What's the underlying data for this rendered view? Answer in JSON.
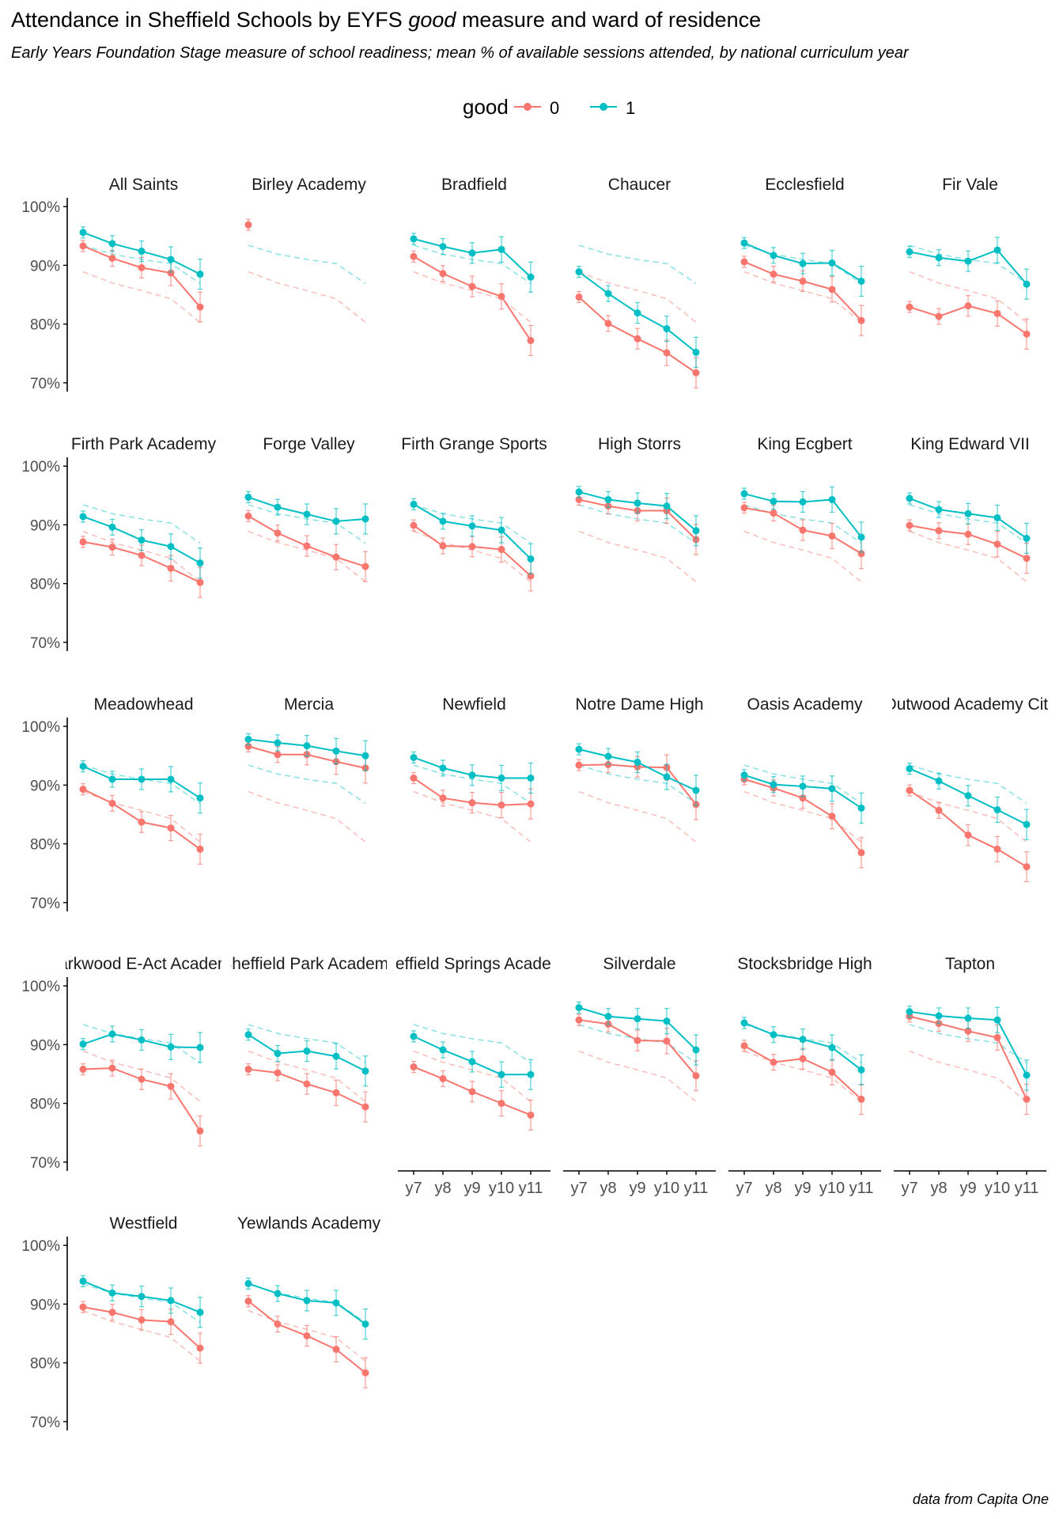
{
  "title_pre": "Attendance in Sheffield Schools by EYFS ",
  "title_em": "good",
  "title_post": " measure and ward of residence",
  "subtitle": "Early Years Foundation Stage measure of school readiness; mean % of available sessions attended, by national curriculum year",
  "caption": "data from Capita One",
  "colors": {
    "good0": "#F8766D",
    "good1": "#00BFC4",
    "axis": "#000000",
    "text": "#4D4D4D"
  },
  "chart_data": {
    "type": "line",
    "facet": "school",
    "legend": {
      "title": "good",
      "position": "top",
      "entries": [
        "0",
        "1"
      ]
    },
    "x": [
      "y7",
      "y8",
      "y9",
      "y10",
      "y11"
    ],
    "ylim": [
      0.7,
      1.0
    ],
    "y_ticks": [
      0.7,
      0.8,
      0.9,
      1.0
    ],
    "y_tick_labels": [
      "70%",
      "80%",
      "90%",
      "100%"
    ],
    "reference_dashed": {
      "good0": [
        0.889,
        0.87,
        0.857,
        0.843,
        0.803
      ],
      "good1": [
        0.934,
        0.919,
        0.91,
        0.903,
        0.869
      ]
    },
    "facets": [
      {
        "name": "All Saints",
        "good0": [
          0.933,
          0.912,
          0.896,
          0.887,
          0.829
        ],
        "good1": [
          0.956,
          0.937,
          0.924,
          0.91,
          0.885
        ]
      },
      {
        "name": "Birley Academy",
        "good0": [
          0.969,
          null,
          null,
          null,
          null
        ],
        "good1": [
          null,
          null,
          null,
          null,
          null
        ]
      },
      {
        "name": "Bradfield",
        "good0": [
          0.915,
          0.886,
          0.864,
          0.847,
          0.772
        ],
        "good1": [
          0.945,
          0.932,
          0.921,
          0.927,
          0.88
        ]
      },
      {
        "name": "Chaucer",
        "good0": [
          0.846,
          0.801,
          0.775,
          0.751,
          0.717
        ],
        "good1": [
          0.889,
          0.852,
          0.819,
          0.792,
          0.752
        ]
      },
      {
        "name": "Ecclesfield",
        "good0": [
          0.906,
          0.885,
          0.873,
          0.859,
          0.806
        ],
        "good1": [
          0.938,
          0.917,
          0.903,
          0.904,
          0.873
        ]
      },
      {
        "name": "Fir Vale",
        "good0": [
          0.829,
          0.813,
          0.831,
          0.818,
          0.783
        ],
        "good1": [
          0.923,
          0.913,
          0.907,
          0.926,
          0.868
        ]
      },
      {
        "name": "Firth Park Academy",
        "good0": [
          0.871,
          0.862,
          0.848,
          0.826,
          0.802
        ],
        "good1": [
          0.914,
          0.896,
          0.874,
          0.863,
          0.835
        ]
      },
      {
        "name": "Forge Valley",
        "good0": [
          0.915,
          0.886,
          0.864,
          0.845,
          0.829
        ],
        "good1": [
          0.947,
          0.93,
          0.918,
          0.906,
          0.91
        ]
      },
      {
        "name": "Firth Grange Sports",
        "good0": [
          0.899,
          0.864,
          0.863,
          0.858,
          0.813
        ],
        "good1": [
          0.935,
          0.906,
          0.898,
          0.891,
          0.842
        ]
      },
      {
        "name": "High Storrs",
        "good0": [
          0.943,
          0.932,
          0.924,
          0.924,
          0.875
        ],
        "good1": [
          0.956,
          0.943,
          0.937,
          0.932,
          0.89
        ]
      },
      {
        "name": "King Ecgbert",
        "good0": [
          0.929,
          0.92,
          0.891,
          0.881,
          0.851
        ],
        "good1": [
          0.953,
          0.94,
          0.939,
          0.943,
          0.879
        ]
      },
      {
        "name": "King Edward VII",
        "good0": [
          0.899,
          0.89,
          0.884,
          0.867,
          0.843
        ],
        "good1": [
          0.945,
          0.926,
          0.919,
          0.912,
          0.877
        ]
      },
      {
        "name": "Meadowhead",
        "good0": [
          0.893,
          0.869,
          0.837,
          0.827,
          0.791
        ],
        "good1": [
          0.932,
          0.91,
          0.91,
          0.91,
          0.878
        ]
      },
      {
        "name": "Mercia",
        "good0": [
          0.966,
          0.952,
          0.952,
          0.94,
          0.929
        ],
        "good1": [
          0.978,
          0.972,
          0.967,
          0.958,
          0.95
        ]
      },
      {
        "name": "Newfield",
        "good0": [
          0.912,
          0.878,
          0.87,
          0.866,
          0.868
        ],
        "good1": [
          0.947,
          0.929,
          0.917,
          0.912,
          0.912
        ]
      },
      {
        "name": "Notre Dame High",
        "good0": [
          0.934,
          0.935,
          0.931,
          0.93,
          0.867
        ],
        "good1": [
          0.961,
          0.949,
          0.939,
          0.914,
          0.891
        ]
      },
      {
        "name": "Oasis Academy",
        "good0": [
          0.91,
          0.895,
          0.878,
          0.847,
          0.785
        ],
        "good1": [
          0.917,
          0.901,
          0.898,
          0.894,
          0.861
        ]
      },
      {
        "name": "Outwood Academy City",
        "good0": [
          0.891,
          0.857,
          0.815,
          0.791,
          0.761
        ],
        "good1": [
          0.928,
          0.907,
          0.882,
          0.858,
          0.833
        ]
      },
      {
        "name": "Parkwood E-Act Academy",
        "good0": [
          0.858,
          0.86,
          0.841,
          0.829,
          0.753
        ],
        "good1": [
          0.901,
          0.918,
          0.908,
          0.896,
          0.895
        ]
      },
      {
        "name": "Sheffield Park Academy",
        "good0": [
          0.858,
          0.852,
          0.833,
          0.818,
          0.794
        ],
        "good1": [
          0.917,
          0.885,
          0.889,
          0.88,
          0.855
        ]
      },
      {
        "name": "Sheffield Springs Academy",
        "good0": [
          0.862,
          0.842,
          0.82,
          0.8,
          0.78
        ],
        "good1": [
          0.914,
          0.891,
          0.871,
          0.849,
          0.849
        ]
      },
      {
        "name": "Silverdale",
        "good0": [
          0.942,
          0.935,
          0.907,
          0.906,
          0.847
        ],
        "good1": [
          0.963,
          0.948,
          0.944,
          0.94,
          0.891
        ]
      },
      {
        "name": "Stocksbridge High",
        "good0": [
          0.898,
          0.87,
          0.876,
          0.853,
          0.807
        ],
        "good1": [
          0.937,
          0.917,
          0.909,
          0.895,
          0.857
        ]
      },
      {
        "name": "Tapton",
        "good0": [
          0.948,
          0.936,
          0.923,
          0.912,
          0.807
        ],
        "good1": [
          0.956,
          0.949,
          0.945,
          0.942,
          0.848
        ]
      },
      {
        "name": "Westfield",
        "good0": [
          0.895,
          0.886,
          0.873,
          0.87,
          0.825
        ],
        "good1": [
          0.939,
          0.919,
          0.913,
          0.906,
          0.886
        ]
      },
      {
        "name": "Yewlands Academy",
        "good0": [
          0.905,
          0.866,
          0.846,
          0.823,
          0.783
        ],
        "good1": [
          0.935,
          0.918,
          0.906,
          0.902,
          0.866
        ]
      }
    ]
  }
}
